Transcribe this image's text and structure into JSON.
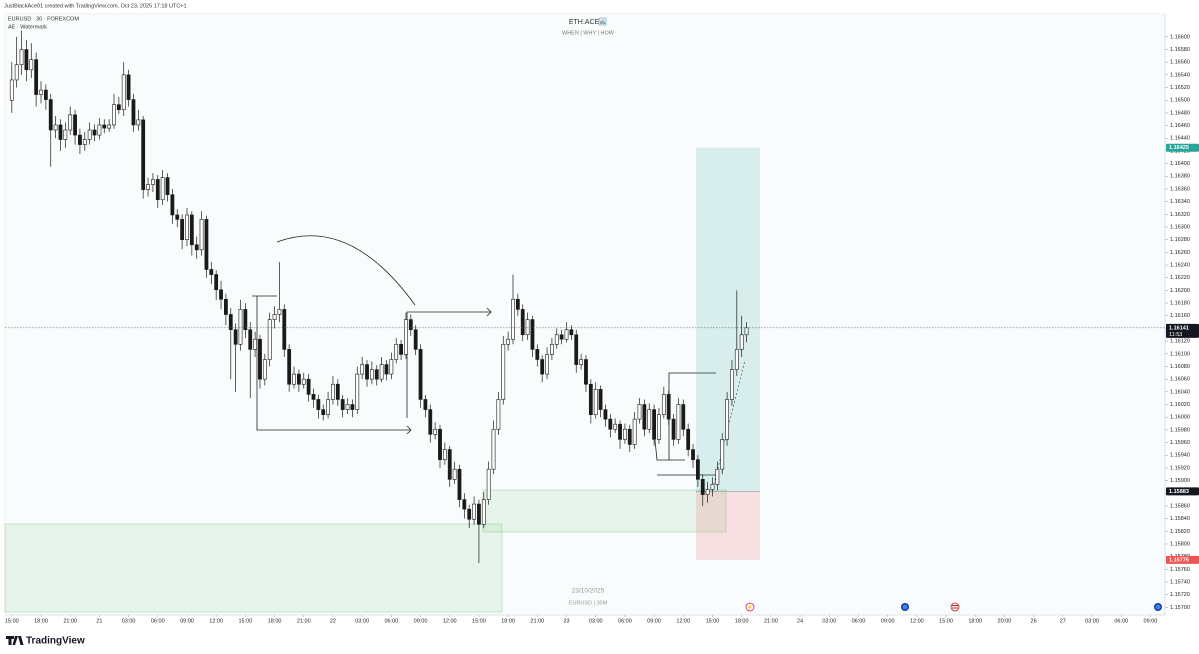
{
  "credit": "JustBlackAce01 created with TradingView.com, Oct 23, 2025 17:18 UTC+1",
  "indicator": "AE · Watermark",
  "brand": "TradingView",
  "chart_data": {
    "type": "candlestick",
    "symbol": "EURUSD · 30 · FOREXCOM",
    "title": "ETH.ACE",
    "subtitle": "WHEN | WHY | HOW",
    "watermark_date": "23/10/2025",
    "watermark_symbol": "EURUSD | 30M",
    "up_color": "#ffffff",
    "down_color": "#1a1a1a",
    "ohlc": [
      [
        1.165,
        1.1656,
        1.1648,
        1.16532
      ],
      [
        1.16532,
        1.166,
        1.1652,
        1.16556
      ],
      [
        1.16556,
        1.1661,
        1.1654,
        1.1658
      ],
      [
        1.1658,
        1.16595,
        1.1653,
        1.16548
      ],
      [
        1.16548,
        1.1659,
        1.16535,
        1.16564
      ],
      [
        1.16564,
        1.16575,
        1.1649,
        1.16509
      ],
      [
        1.16509,
        1.1653,
        1.16495,
        1.16516
      ],
      [
        1.16516,
        1.16525,
        1.16485,
        1.16501
      ],
      [
        1.16501,
        1.1651,
        1.16395,
        1.16453
      ],
      [
        1.16453,
        1.16475,
        1.1644,
        1.16461
      ],
      [
        1.16461,
        1.1647,
        1.1642,
        1.16438
      ],
      [
        1.16438,
        1.16465,
        1.16425,
        1.16453
      ],
      [
        1.16453,
        1.1649,
        1.16445,
        1.16477
      ],
      [
        1.16477,
        1.16485,
        1.1643,
        1.16445
      ],
      [
        1.16445,
        1.16455,
        1.16415,
        1.1643
      ],
      [
        1.1643,
        1.1645,
        1.1642,
        1.16438
      ],
      [
        1.16438,
        1.16465,
        1.1643,
        1.16453
      ],
      [
        1.16453,
        1.16462,
        1.16435,
        1.16445
      ],
      [
        1.16445,
        1.16472,
        1.16438,
        1.16461
      ],
      [
        1.16461,
        1.1647,
        1.16448,
        1.16456
      ],
      [
        1.16456,
        1.1647,
        1.1645,
        1.16461
      ],
      [
        1.16461,
        1.1651,
        1.16455,
        1.16493
      ],
      [
        1.16493,
        1.16505,
        1.16478,
        1.16485
      ],
      [
        1.16485,
        1.1656,
        1.16475,
        1.1654
      ],
      [
        1.1654,
        1.16548,
        1.1649,
        1.16501
      ],
      [
        1.16501,
        1.1651,
        1.1645,
        1.16461
      ],
      [
        1.16461,
        1.16485,
        1.16452,
        1.16469
      ],
      [
        1.16469,
        1.16475,
        1.16345,
        1.16359
      ],
      [
        1.16359,
        1.16378,
        1.16348,
        1.16367
      ],
      [
        1.16367,
        1.16385,
        1.16355,
        1.16375
      ],
      [
        1.16375,
        1.16382,
        1.1633,
        1.16343
      ],
      [
        1.16343,
        1.1639,
        1.16335,
        1.16378
      ],
      [
        1.16378,
        1.16385,
        1.1634,
        1.16351
      ],
      [
        1.16351,
        1.1636,
        1.16305,
        1.16319
      ],
      [
        1.16319,
        1.16328,
        1.163,
        1.16312
      ],
      [
        1.16312,
        1.1632,
        1.16265,
        1.1628
      ],
      [
        1.1628,
        1.1633,
        1.1627,
        1.16319
      ],
      [
        1.16319,
        1.16325,
        1.16255,
        1.16272
      ],
      [
        1.16272,
        1.16285,
        1.1625,
        1.16264
      ],
      [
        1.16264,
        1.16325,
        1.16255,
        1.16312
      ],
      [
        1.16312,
        1.16318,
        1.1622,
        1.16233
      ],
      [
        1.16233,
        1.16245,
        1.1621,
        1.16225
      ],
      [
        1.16225,
        1.16232,
        1.16185,
        1.16201
      ],
      [
        1.16201,
        1.16215,
        1.1617,
        1.16186
      ],
      [
        1.16186,
        1.16195,
        1.16145,
        1.16162
      ],
      [
        1.16162,
        1.16172,
        1.1606,
        1.16138
      ],
      [
        1.16138,
        1.16148,
        1.1604,
        1.16115
      ],
      [
        1.16115,
        1.16185,
        1.16105,
        1.1617
      ],
      [
        1.1617,
        1.1618,
        1.16125,
        1.16138
      ],
      [
        1.16138,
        1.1615,
        1.1603,
        1.16107
      ],
      [
        1.16107,
        1.16135,
        1.16095,
        1.16123
      ],
      [
        1.16123,
        1.1613,
        1.16045,
        1.1606
      ],
      [
        1.1606,
        1.161,
        1.1605,
        1.16091
      ],
      [
        1.16091,
        1.16165,
        1.1608,
        1.16154
      ],
      [
        1.16154,
        1.16175,
        1.1614,
        1.16162
      ],
      [
        1.16162,
        1.16245,
        1.1615,
        1.1617
      ],
      [
        1.1617,
        1.16178,
        1.16095,
        1.16107
      ],
      [
        1.16107,
        1.16115,
        1.1604,
        1.16052
      ],
      [
        1.16052,
        1.1608,
        1.16045,
        1.16068
      ],
      [
        1.16068,
        1.16075,
        1.1604,
        1.16052
      ],
      [
        1.16052,
        1.1607,
        1.16045,
        1.1606
      ],
      [
        1.1606,
        1.16068,
        1.16025,
        1.16036
      ],
      [
        1.16036,
        1.16045,
        1.16015,
        1.16028
      ],
      [
        1.16028,
        1.16035,
        1.15998,
        1.16012
      ],
      [
        1.16012,
        1.1602,
        1.15995,
        1.16004
      ],
      [
        1.16004,
        1.1604,
        1.15998,
        1.16028
      ],
      [
        1.16028,
        1.16065,
        1.1602,
        1.16052
      ],
      [
        1.16052,
        1.1606,
        1.16018,
        1.16028
      ],
      [
        1.16028,
        1.16035,
        1.16,
        1.16012
      ],
      [
        1.16012,
        1.1603,
        1.16005,
        1.1602
      ],
      [
        1.1602,
        1.16028,
        1.16,
        1.16012
      ],
      [
        1.16012,
        1.1608,
        1.16005,
        1.16068
      ],
      [
        1.16068,
        1.16095,
        1.1606,
        1.16083
      ],
      [
        1.16083,
        1.1609,
        1.16048,
        1.1606
      ],
      [
        1.1606,
        1.16088,
        1.16052,
        1.16075
      ],
      [
        1.16075,
        1.16082,
        1.1605,
        1.1606
      ],
      [
        1.1606,
        1.16095,
        1.16055,
        1.16083
      ],
      [
        1.16083,
        1.1609,
        1.16058,
        1.16068
      ],
      [
        1.16068,
        1.16102,
        1.1606,
        1.16091
      ],
      [
        1.16091,
        1.16125,
        1.16085,
        1.16115
      ],
      [
        1.16115,
        1.16122,
        1.1609,
        1.16099
      ],
      [
        1.16099,
        1.16165,
        1.16092,
        1.16154
      ],
      [
        1.16154,
        1.16162,
        1.16128,
        1.16138
      ],
      [
        1.16138,
        1.16145,
        1.16098,
        1.16107
      ],
      [
        1.16107,
        1.16115,
        1.16015,
        1.16028
      ],
      [
        1.16028,
        1.16035,
        1.16,
        1.16012
      ],
      [
        1.16012,
        1.1602,
        1.1596,
        1.15973
      ],
      [
        1.15973,
        1.15992,
        1.15965,
        1.15981
      ],
      [
        1.15981,
        1.15988,
        1.1592,
        1.15933
      ],
      [
        1.15933,
        1.1596,
        1.15925,
        1.15949
      ],
      [
        1.15949,
        1.15955,
        1.1589,
        1.15902
      ],
      [
        1.15902,
        1.1593,
        1.15895,
        1.15918
      ],
      [
        1.15918,
        1.15925,
        1.15858,
        1.1587
      ],
      [
        1.1587,
        1.1588,
        1.1584,
        1.15855
      ],
      [
        1.15855,
        1.15862,
        1.15825,
        1.15839
      ],
      [
        1.15839,
        1.15875,
        1.1583,
        1.15863
      ],
      [
        1.15863,
        1.1587,
        1.1577,
        1.15831
      ],
      [
        1.15831,
        1.15882,
        1.15825,
        1.1587
      ],
      [
        1.1587,
        1.1593,
        1.15862,
        1.15918
      ],
      [
        1.15918,
        1.15995,
        1.1591,
        1.15981
      ],
      [
        1.15981,
        1.1604,
        1.15972,
        1.16028
      ],
      [
        1.16028,
        1.16128,
        1.1602,
        1.16115
      ],
      [
        1.16115,
        1.16135,
        1.16105,
        1.16123
      ],
      [
        1.16123,
        1.16225,
        1.16115,
        1.16186
      ],
      [
        1.16186,
        1.16195,
        1.1616,
        1.1617
      ],
      [
        1.1617,
        1.16178,
        1.1612,
        1.1613
      ],
      [
        1.1613,
        1.16165,
        1.16122,
        1.16154
      ],
      [
        1.16154,
        1.1616,
        1.16095,
        1.16107
      ],
      [
        1.16107,
        1.16115,
        1.1608,
        1.16091
      ],
      [
        1.16091,
        1.16098,
        1.16055,
        1.16068
      ],
      [
        1.16068,
        1.1611,
        1.1606,
        1.16099
      ],
      [
        1.16099,
        1.16125,
        1.1609,
        1.16115
      ],
      [
        1.16115,
        1.1614,
        1.16108,
        1.1613
      ],
      [
        1.1613,
        1.16138,
        1.16115,
        1.16123
      ],
      [
        1.16123,
        1.1615,
        1.16118,
        1.16138
      ],
      [
        1.16138,
        1.16145,
        1.16122,
        1.1613
      ],
      [
        1.1613,
        1.16138,
        1.1607,
        1.16083
      ],
      [
        1.16083,
        1.161,
        1.16075,
        1.16091
      ],
      [
        1.16091,
        1.16098,
        1.1604,
        1.16052
      ],
      [
        1.16052,
        1.1606,
        1.1599,
        1.16004
      ],
      [
        1.16004,
        1.16055,
        1.15998,
        1.16044
      ],
      [
        1.16044,
        1.1605,
        1.16,
        1.16012
      ],
      [
        1.16012,
        1.1602,
        1.15985,
        1.15997
      ],
      [
        1.15997,
        1.16005,
        1.15968,
        1.15981
      ],
      [
        1.15981,
        1.15998,
        1.15975,
        1.15989
      ],
      [
        1.15989,
        1.15995,
        1.1595,
        1.15965
      ],
      [
        1.15965,
        1.1599,
        1.15958,
        1.15981
      ],
      [
        1.15981,
        1.15988,
        1.15945,
        1.15957
      ],
      [
        1.15957,
        1.16008,
        1.1595,
        1.15997
      ],
      [
        1.15997,
        1.1603,
        1.1599,
        1.1602
      ],
      [
        1.1602,
        1.16028,
        1.1597,
        1.15981
      ],
      [
        1.15981,
        1.16022,
        1.15975,
        1.16012
      ],
      [
        1.16012,
        1.1602,
        1.15955,
        1.15965
      ],
      [
        1.15965,
        1.16015,
        1.15958,
        1.16004
      ],
      [
        1.16004,
        1.16048,
        1.15998,
        1.16036
      ],
      [
        1.16036,
        1.16042,
        1.15988,
        1.15997
      ],
      [
        1.15997,
        1.16005,
        1.15955,
        1.15965
      ],
      [
        1.15965,
        1.1603,
        1.15958,
        1.1602
      ],
      [
        1.1602,
        1.16028,
        1.1597,
        1.15981
      ],
      [
        1.15981,
        1.1599,
        1.15938,
        1.15949
      ],
      [
        1.15949,
        1.15958,
        1.1592,
        1.15933
      ],
      [
        1.15933,
        1.1594,
        1.1589,
        1.15902
      ],
      [
        1.15902,
        1.1591,
        1.1586,
        1.15878
      ],
      [
        1.15878,
        1.15898,
        1.15865,
        1.15886
      ],
      [
        1.15886,
        1.15905,
        1.15875,
        1.15894
      ],
      [
        1.15894,
        1.1593,
        1.15885,
        1.15918
      ],
      [
        1.15918,
        1.15975,
        1.1591,
        1.15965
      ],
      [
        1.15965,
        1.1604,
        1.15955,
        1.16028
      ],
      [
        1.16028,
        1.1609,
        1.16018,
        1.16075
      ],
      [
        1.16075,
        1.162,
        1.16065,
        1.16107
      ],
      [
        1.16107,
        1.1616,
        1.16095,
        1.1613
      ],
      [
        1.1613,
        1.1615,
        1.16118,
        1.16141
      ]
    ],
    "last_price": 1.16141,
    "countdown": "11:53",
    "position": {
      "target": 1.16425,
      "entry": 1.15883,
      "stop": 1.15775
    },
    "xlim": [
      -1.4,
      237
    ],
    "ylim": [
      1.15688,
      1.16636
    ],
    "xticks": [
      {
        "value": 0,
        "label": "15:00"
      },
      {
        "value": 6,
        "label": "18:00"
      },
      {
        "value": 12,
        "label": "21:00"
      },
      {
        "value": 18,
        "label": "21"
      },
      {
        "value": 24,
        "label": "03:00"
      },
      {
        "value": 30,
        "label": "06:00"
      },
      {
        "value": 36,
        "label": "09:00"
      },
      {
        "value": 42,
        "label": "12:00"
      },
      {
        "value": 48,
        "label": "15:00"
      },
      {
        "value": 54,
        "label": "18:00"
      },
      {
        "value": 60,
        "label": "21:00"
      },
      {
        "value": 66,
        "label": "22"
      },
      {
        "value": 72,
        "label": "03:00"
      },
      {
        "value": 78,
        "label": "06:00"
      },
      {
        "value": 84,
        "label": "09:00"
      },
      {
        "value": 90,
        "label": "12:00"
      },
      {
        "value": 96,
        "label": "15:00"
      },
      {
        "value": 102,
        "label": "18:00"
      },
      {
        "value": 108,
        "label": "21:00"
      },
      {
        "value": 114,
        "label": "23"
      },
      {
        "value": 120,
        "label": "03:00"
      },
      {
        "value": 126,
        "label": "06:00"
      },
      {
        "value": 132,
        "label": "09:00"
      },
      {
        "value": 138,
        "label": "12:00"
      },
      {
        "value": 144,
        "label": "15:00"
      },
      {
        "value": 150,
        "label": "18:00"
      },
      {
        "value": 156,
        "label": "21:00"
      },
      {
        "value": 162,
        "label": "24"
      },
      {
        "value": 168,
        "label": "03:00"
      },
      {
        "value": 174,
        "label": "06:00"
      },
      {
        "value": 180,
        "label": "09:00"
      },
      {
        "value": 186,
        "label": "12:00"
      },
      {
        "value": 192,
        "label": "15:00"
      },
      {
        "value": 198,
        "label": "18:00"
      },
      {
        "value": 204,
        "label": "20:00"
      },
      {
        "value": 210,
        "label": "26"
      },
      {
        "value": 216,
        "label": "27"
      },
      {
        "value": 222,
        "label": "03:00"
      },
      {
        "value": 228,
        "label": "06:00"
      },
      {
        "value": 234,
        "label": "09:00"
      }
    ],
    "yticks": [
      {
        "value": 1.157,
        "label": "1.15700"
      },
      {
        "value": 1.1572,
        "label": "1.15720"
      },
      {
        "value": 1.1574,
        "label": "1.15740"
      },
      {
        "value": 1.1576,
        "label": "1.15760"
      },
      {
        "value": 1.1578,
        "label": "1.15780"
      },
      {
        "value": 1.158,
        "label": "1.15800"
      },
      {
        "value": 1.1582,
        "label": "1.15820"
      },
      {
        "value": 1.1584,
        "label": "1.15840"
      },
      {
        "value": 1.1586,
        "label": "1.15860"
      },
      {
        "value": 1.1588,
        "label": "1.15880"
      },
      {
        "value": 1.159,
        "label": "1.15900"
      },
      {
        "value": 1.1592,
        "label": "1.15920"
      },
      {
        "value": 1.1594,
        "label": "1.15940"
      },
      {
        "value": 1.1596,
        "label": "1.15960"
      },
      {
        "value": 1.1598,
        "label": "1.15980"
      },
      {
        "value": 1.16,
        "label": "1.16000"
      },
      {
        "value": 1.1602,
        "label": "1.16020"
      },
      {
        "value": 1.1604,
        "label": "1.16040"
      },
      {
        "value": 1.1606,
        "label": "1.16060"
      },
      {
        "value": 1.1608,
        "label": "1.16080"
      },
      {
        "value": 1.161,
        "label": "1.16100"
      },
      {
        "value": 1.1612,
        "label": "1.16120"
      },
      {
        "value": 1.1614,
        "label": "1.16140"
      },
      {
        "value": 1.1616,
        "label": "1.16160"
      },
      {
        "value": 1.1618,
        "label": "1.16180"
      },
      {
        "value": 1.162,
        "label": "1.16200"
      },
      {
        "value": 1.1622,
        "label": "1.16220"
      },
      {
        "value": 1.1624,
        "label": "1.16240"
      },
      {
        "value": 1.1626,
        "label": "1.16260"
      },
      {
        "value": 1.1628,
        "label": "1.16280"
      },
      {
        "value": 1.163,
        "label": "1.16300"
      },
      {
        "value": 1.1632,
        "label": "1.16320"
      },
      {
        "value": 1.1634,
        "label": "1.16340"
      },
      {
        "value": 1.1636,
        "label": "1.16360"
      },
      {
        "value": 1.1638,
        "label": "1.16380"
      },
      {
        "value": 1.164,
        "label": "1.16400"
      },
      {
        "value": 1.1642,
        "label": "1.16420"
      },
      {
        "value": 1.1644,
        "label": "1.16440"
      },
      {
        "value": 1.1646,
        "label": "1.16460"
      },
      {
        "value": 1.1648,
        "label": "1.16480"
      },
      {
        "value": 1.165,
        "label": "1.16500"
      },
      {
        "value": 1.1652,
        "label": "1.16520"
      },
      {
        "value": 1.1654,
        "label": "1.16540"
      },
      {
        "value": 1.1656,
        "label": "1.16560"
      },
      {
        "value": 1.1658,
        "label": "1.16580"
      },
      {
        "value": 1.166,
        "label": "1.16600"
      }
    ]
  }
}
